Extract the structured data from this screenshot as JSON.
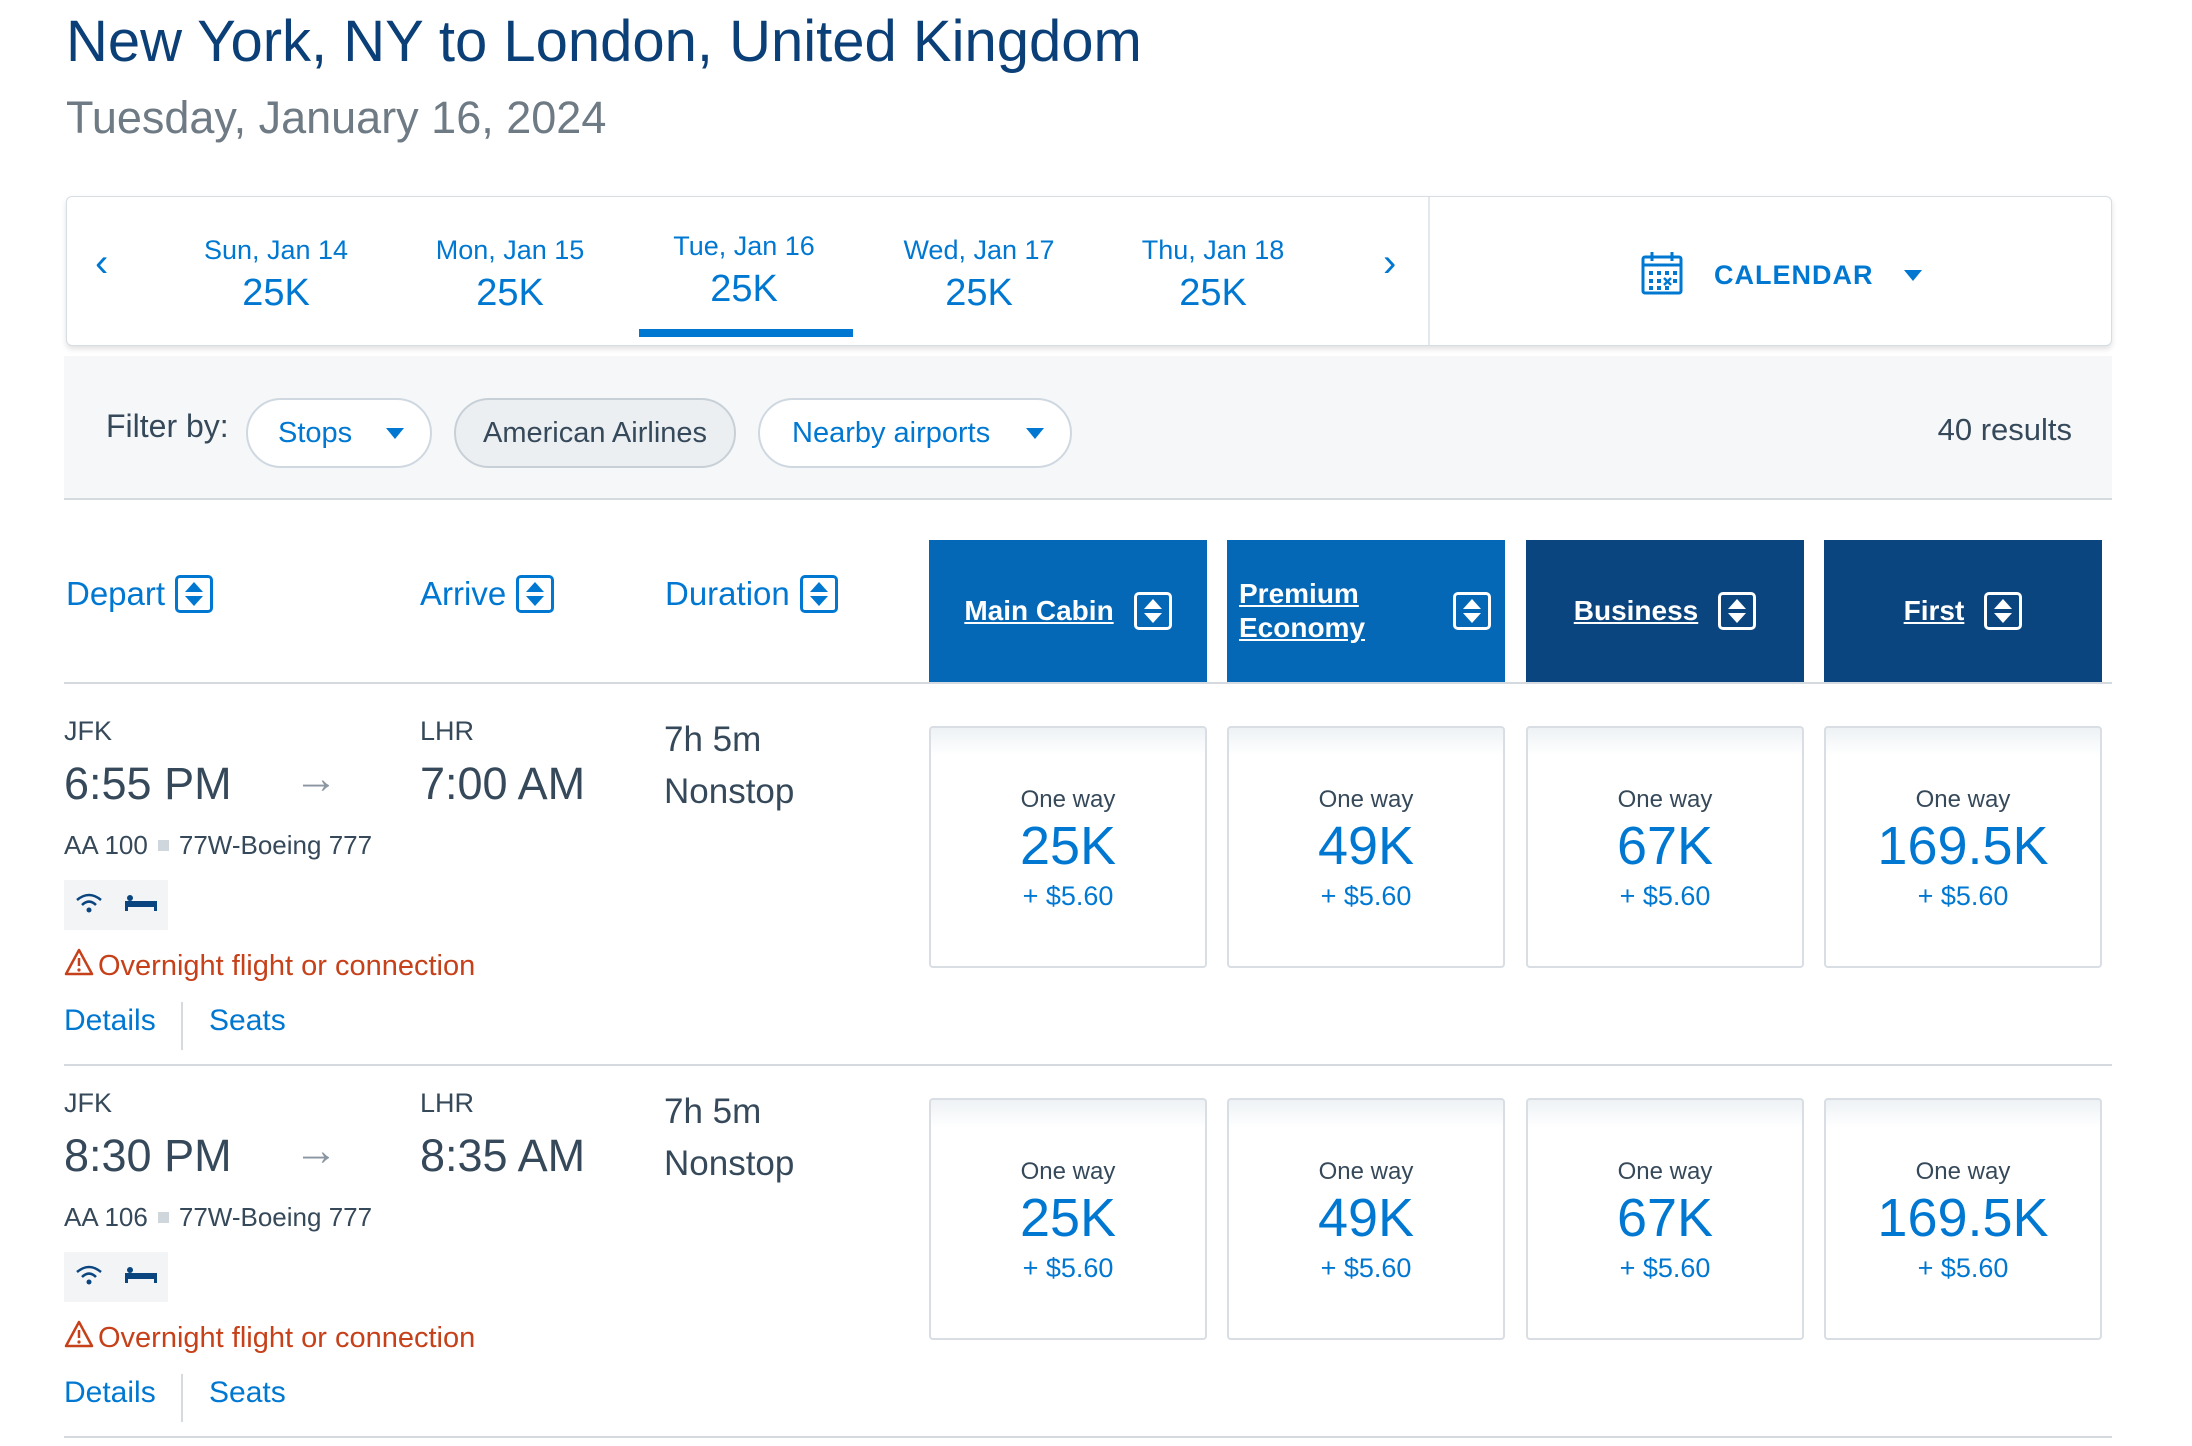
{
  "header": {
    "title": "New York, NY to London, United Kingdom",
    "subtitle": "Tuesday, January 16, 2024"
  },
  "date_strip": {
    "prev_icon": "chevron-left-icon",
    "next_icon": "chevron-right-icon",
    "dates": [
      {
        "label": "Sun, Jan 14",
        "price": "25K",
        "selected": false
      },
      {
        "label": "Mon, Jan 15",
        "price": "25K",
        "selected": false
      },
      {
        "label": "Tue, Jan 16",
        "price": "25K",
        "selected": true
      },
      {
        "label": "Wed, Jan 17",
        "price": "25K",
        "selected": false
      },
      {
        "label": "Thu, Jan 18",
        "price": "25K",
        "selected": false
      }
    ],
    "calendar_label": "CALENDAR"
  },
  "filters": {
    "label": "Filter by:",
    "stops": "Stops",
    "airline": "American Airlines",
    "nearby": "Nearby airports",
    "results": "40 results"
  },
  "columns": {
    "depart": "Depart",
    "arrive": "Arrive",
    "duration": "Duration",
    "cabins": [
      "Main Cabin",
      "Premium Economy",
      "Business",
      "First"
    ]
  },
  "flights": [
    {
      "origin": "JFK",
      "depart_time": "6:55 PM",
      "destination": "LHR",
      "arrive_time": "7:00 AM",
      "duration": "7h 5m",
      "stops": "Nonstop",
      "flight_number": "AA 100",
      "aircraft": "77W-Boeing 777",
      "warning": "Overnight flight or connection",
      "details": "Details",
      "seats": "Seats",
      "fares": [
        {
          "type": "One way",
          "points": "25K",
          "tax": "+ $5.60"
        },
        {
          "type": "One way",
          "points": "49K",
          "tax": "+ $5.60"
        },
        {
          "type": "One way",
          "points": "67K",
          "tax": "+ $5.60"
        },
        {
          "type": "One way",
          "points": "169.5K",
          "tax": "+ $5.60"
        }
      ]
    },
    {
      "origin": "JFK",
      "depart_time": "8:30 PM",
      "destination": "LHR",
      "arrive_time": "8:35 AM",
      "duration": "7h 5m",
      "stops": "Nonstop",
      "flight_number": "AA 106",
      "aircraft": "77W-Boeing 777",
      "warning": "Overnight flight or connection",
      "details": "Details",
      "seats": "Seats",
      "fares": [
        {
          "type": "One way",
          "points": "25K",
          "tax": "+ $5.60"
        },
        {
          "type": "One way",
          "points": "49K",
          "tax": "+ $5.60"
        },
        {
          "type": "One way",
          "points": "67K",
          "tax": "+ $5.60"
        },
        {
          "type": "One way",
          "points": "169.5K",
          "tax": "+ $5.60"
        }
      ]
    }
  ],
  "colors": {
    "accent": "#0078d2",
    "title": "#0b3f77",
    "cabin_mid": "#0468b7",
    "cabin_dark": "#0b457f",
    "warning": "#c6411a"
  }
}
